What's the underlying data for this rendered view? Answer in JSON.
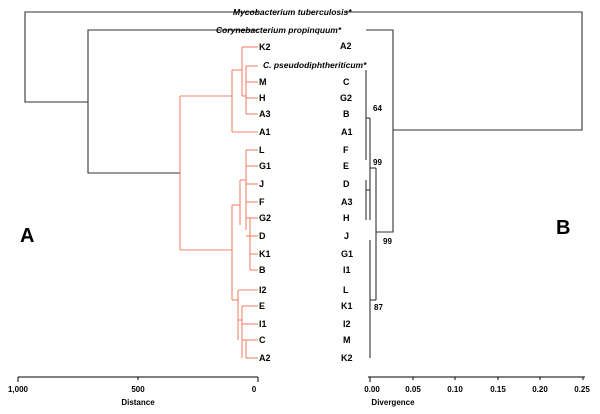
{
  "panels": {
    "a": "A",
    "b": "B"
  },
  "species": {
    "mtb": "Mycobacterium tuberculosis*",
    "cprop": "Corynebacterium propinquum*",
    "cpseudo": "C. pseudodiphtheriticum*"
  },
  "left_leaves": [
    "K2",
    "M",
    "H",
    "A3",
    "A1",
    "L",
    "G1",
    "J",
    "F",
    "G2",
    "D",
    "K1",
    "B",
    "I2",
    "E",
    "I1",
    "C",
    "A2"
  ],
  "right_leaves": [
    "A2",
    "C",
    "G2",
    "B",
    "A1",
    "F",
    "E",
    "D",
    "A3",
    "H",
    "J",
    "G1",
    "I1",
    "L",
    "K1",
    "I2",
    "M",
    "K2"
  ],
  "bootstrap": [
    "64",
    "99",
    "99",
    "87"
  ],
  "axis_left": {
    "title": "Distance",
    "ticks": [
      "1,000",
      "500",
      "0"
    ]
  },
  "axis_right": {
    "title": "Divergence",
    "ticks": [
      "0.00",
      "0.05",
      "0.10",
      "0.15",
      "0.20",
      "0.25"
    ]
  }
}
